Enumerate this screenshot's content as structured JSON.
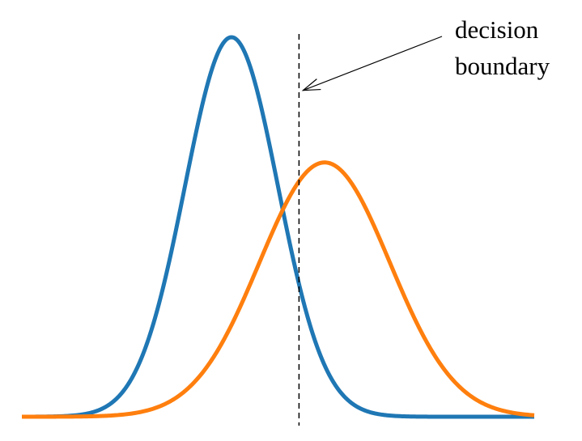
{
  "chart_data": {
    "type": "line",
    "title": "",
    "xlabel": "",
    "ylabel": "",
    "axes_visible": false,
    "grid": false,
    "legend": "none",
    "xlim": [
      -4.5,
      6.5
    ],
    "ylim": [
      0,
      1
    ],
    "series": [
      {
        "color": "#1f77b4",
        "distribution": "gaussian",
        "mean": 0,
        "std": 1,
        "peak": 1.0
      },
      {
        "color": "#ff7f0e",
        "distribution": "gaussian",
        "mean": 2,
        "std": 1.4,
        "peak": 0.67
      }
    ],
    "decision_boundary": {
      "x": 1.45,
      "style": "dashed",
      "color": "#000000"
    },
    "annotation": {
      "lines": [
        "decision",
        "boundary"
      ],
      "arrow_target_x": 1.45,
      "arrow_target_y": 0.86
    }
  }
}
